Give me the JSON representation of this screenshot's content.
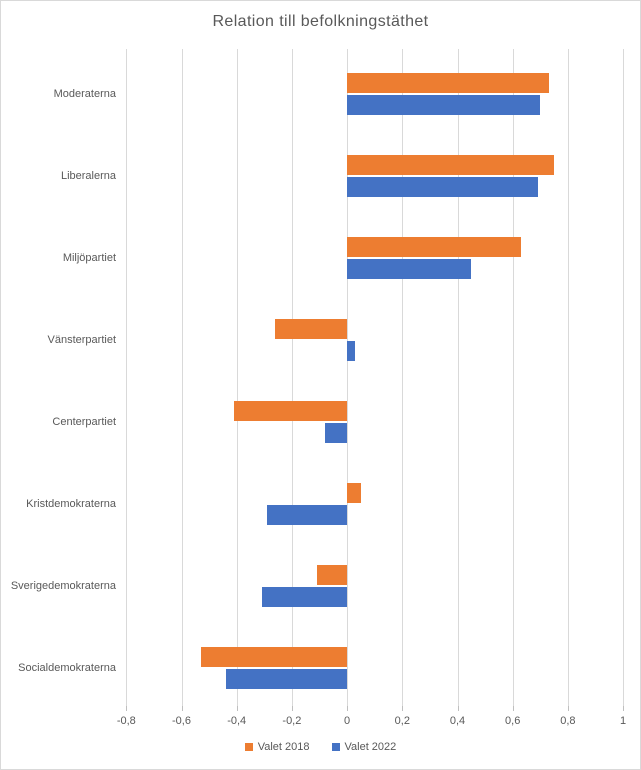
{
  "chart_data": {
    "type": "bar",
    "orientation": "horizontal",
    "title": "Relation till befolkningstäthet",
    "categories": [
      "Moderaterna",
      "Liberalerna",
      "Miljöpartiet",
      "Vänsterpartiet",
      "Centerpartiet",
      "Kristdemokraterna",
      "Sverigedemokraterna",
      "Socialdemokraterna"
    ],
    "series": [
      {
        "name": "Valet 2018",
        "color": "#ED7D31",
        "values": [
          0.73,
          0.75,
          0.63,
          -0.26,
          -0.41,
          0.05,
          -0.11,
          -0.53
        ]
      },
      {
        "name": "Valet 2022",
        "color": "#4472C4",
        "values": [
          0.7,
          0.69,
          0.45,
          0.03,
          -0.08,
          -0.29,
          -0.31,
          -0.44
        ]
      }
    ],
    "xlabel": "",
    "ylabel": "",
    "xlim": [
      -0.8,
      1.0
    ],
    "xticks": [
      -0.8,
      -0.6,
      -0.4,
      -0.2,
      0,
      0.2,
      0.4,
      0.6,
      0.8,
      1
    ],
    "xtick_labels": [
      "-0,8",
      "-0,6",
      "-0,4",
      "-0,2",
      "0",
      "0,2",
      "0,4",
      "0,6",
      "0,8",
      "1"
    ],
    "grid": true,
    "legend_position": "bottom"
  },
  "colors": {
    "series_2018": "#ED7D31",
    "series_2022": "#4472C4",
    "gridline": "#D9D9D9",
    "tick": "#BFBFBF",
    "text": "#595959",
    "background": "#FFFFFF",
    "border": "#D9D9D9"
  }
}
